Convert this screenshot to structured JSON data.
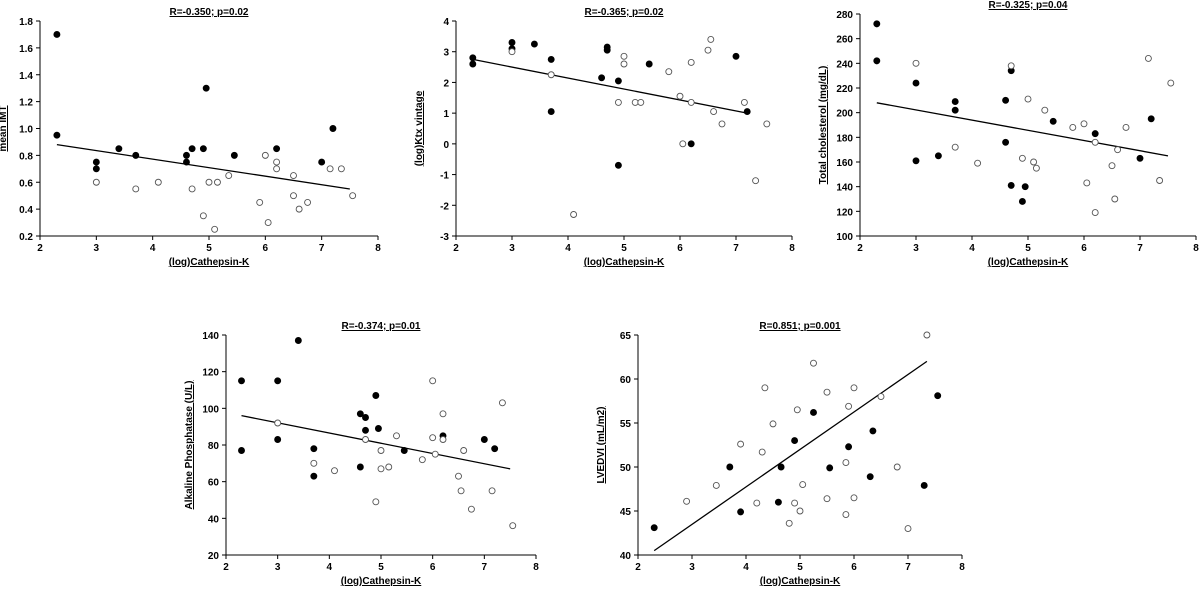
{
  "chart_data": [
    {
      "type": "scatter",
      "title": "R=-0.350; p=0.02",
      "xlabel": "(log)Cathepsin-K",
      "ylabel": "mean IMT",
      "xlim": [
        2,
        8
      ],
      "ylim": [
        0.2,
        1.8
      ],
      "xticks": [
        "2",
        "3",
        "4",
        "5",
        "6",
        "7",
        "8"
      ],
      "yticks": [
        "0.2",
        "0.4",
        "0.6",
        "0.8",
        "1.0",
        "1.2",
        "1.4",
        "1.6",
        "1.8"
      ],
      "fit_line": [
        [
          2.3,
          0.88
        ],
        [
          7.5,
          0.55
        ]
      ],
      "series": [
        {
          "marker": "filled",
          "x": [
            2.3,
            2.3,
            3.0,
            3.0,
            3.4,
            3.7,
            4.6,
            4.6,
            4.7,
            4.9,
            4.95,
            5.45,
            6.2,
            7.0,
            7.2
          ],
          "y": [
            1.7,
            0.95,
            0.75,
            0.7,
            0.85,
            0.8,
            0.8,
            0.75,
            0.85,
            0.85,
            1.3,
            0.8,
            0.85,
            0.75,
            1.0
          ]
        },
        {
          "marker": "open",
          "x": [
            3.0,
            3.7,
            4.1,
            4.7,
            4.9,
            5.0,
            5.1,
            5.15,
            5.35,
            5.9,
            6.0,
            6.05,
            6.2,
            6.2,
            6.5,
            6.5,
            6.6,
            6.75,
            7.15,
            7.35,
            7.55
          ],
          "y": [
            0.6,
            0.55,
            0.6,
            0.55,
            0.35,
            0.6,
            0.25,
            0.6,
            0.65,
            0.45,
            0.8,
            0.3,
            0.7,
            0.75,
            0.5,
            0.65,
            0.4,
            0.45,
            0.7,
            0.7,
            0.5
          ]
        }
      ]
    },
    {
      "type": "scatter",
      "title": "R=-0.365; p=0.02",
      "xlabel": "(log)Cathepsin-K",
      "ylabel": "(log)Ktx vintage",
      "xlim": [
        2,
        8
      ],
      "ylim": [
        -3,
        4
      ],
      "xticks": [
        "2",
        "3",
        "4",
        "5",
        "6",
        "7",
        "8"
      ],
      "yticks": [
        "-3",
        "-2",
        "-1",
        "0",
        "1",
        "2",
        "3",
        "4"
      ],
      "fit_line": [
        [
          2.3,
          2.75
        ],
        [
          7.2,
          1.0
        ]
      ],
      "series": [
        {
          "marker": "filled",
          "x": [
            2.3,
            2.3,
            3.0,
            3.0,
            3.4,
            3.7,
            3.7,
            4.6,
            4.7,
            4.7,
            4.9,
            4.9,
            5.45,
            6.2,
            7.0,
            7.2
          ],
          "y": [
            2.8,
            2.6,
            3.3,
            3.1,
            3.25,
            2.75,
            1.05,
            2.15,
            3.15,
            3.05,
            2.05,
            -0.7,
            2.6,
            0.0,
            2.85,
            1.05
          ]
        },
        {
          "marker": "open",
          "x": [
            3.0,
            3.7,
            4.1,
            4.9,
            5.0,
            5.0,
            5.2,
            5.3,
            5.8,
            6.0,
            6.05,
            6.2,
            6.2,
            6.5,
            6.55,
            6.6,
            6.75,
            7.15,
            7.35,
            7.55
          ],
          "y": [
            3.0,
            2.25,
            -2.3,
            1.35,
            2.85,
            2.6,
            1.35,
            1.35,
            2.35,
            1.55,
            0.0,
            1.35,
            2.65,
            3.05,
            3.4,
            1.05,
            0.65,
            1.35,
            -1.2,
            0.65
          ]
        }
      ]
    },
    {
      "type": "scatter",
      "title": "R=-0.325; p=0.04",
      "xlabel": "(log)Cathepsin-K",
      "ylabel": "Total cholesterol (mg/dL)",
      "xlim": [
        2,
        8
      ],
      "ylim": [
        100,
        280
      ],
      "xticks": [
        "2",
        "3",
        "4",
        "5",
        "6",
        "7",
        "8"
      ],
      "yticks": [
        "100",
        "120",
        "140",
        "160",
        "180",
        "200",
        "220",
        "240",
        "260",
        "280"
      ],
      "fit_line": [
        [
          2.3,
          208
        ],
        [
          7.5,
          165
        ]
      ],
      "series": [
        {
          "marker": "filled",
          "x": [
            2.3,
            2.3,
            3.0,
            3.0,
            3.4,
            3.7,
            3.7,
            4.6,
            4.6,
            4.7,
            4.7,
            4.9,
            4.95,
            5.45,
            6.2,
            7.0,
            7.2
          ],
          "y": [
            272,
            242,
            224,
            161,
            165,
            209,
            202,
            210,
            176,
            234,
            141,
            128,
            140,
            193,
            183,
            163,
            195
          ]
        },
        {
          "marker": "open",
          "x": [
            3.0,
            3.7,
            4.1,
            4.7,
            4.9,
            5.0,
            5.1,
            5.15,
            5.3,
            5.8,
            6.0,
            6.05,
            6.2,
            6.2,
            6.5,
            6.55,
            6.6,
            6.75,
            7.15,
            7.35,
            7.55
          ],
          "y": [
            240,
            172,
            159,
            238,
            163,
            211,
            160,
            155,
            202,
            188,
            191,
            143,
            119,
            176,
            157,
            130,
            170,
            188,
            244,
            145,
            224
          ]
        }
      ]
    },
    {
      "type": "scatter",
      "title": "R=-0.374; p=0.01",
      "xlabel": "(log)Cathepsin-K",
      "ylabel": "Alkaline Phosphatase (U/L)",
      "xlim": [
        2,
        8
      ],
      "ylim": [
        20,
        140
      ],
      "xticks": [
        "2",
        "3",
        "4",
        "5",
        "6",
        "7",
        "8"
      ],
      "yticks": [
        "20",
        "40",
        "60",
        "80",
        "100",
        "120",
        "140"
      ],
      "fit_line": [
        [
          2.3,
          96
        ],
        [
          7.5,
          67
        ]
      ],
      "series": [
        {
          "marker": "filled",
          "x": [
            2.3,
            2.3,
            3.0,
            3.0,
            3.4,
            3.7,
            3.7,
            4.6,
            4.6,
            4.7,
            4.7,
            4.9,
            4.95,
            5.45,
            6.2,
            7.0,
            7.2
          ],
          "y": [
            115,
            77,
            115,
            83,
            137,
            78,
            63,
            68,
            97,
            95,
            88,
            107,
            89,
            77,
            85,
            83,
            78
          ]
        },
        {
          "marker": "open",
          "x": [
            3.0,
            3.7,
            4.1,
            4.7,
            4.9,
            5.0,
            5.0,
            5.15,
            5.3,
            5.8,
            6.0,
            6.0,
            6.05,
            6.2,
            6.2,
            6.5,
            6.55,
            6.6,
            6.75,
            7.15,
            7.35,
            7.55
          ],
          "y": [
            92,
            70,
            66,
            83,
            49,
            67,
            77,
            68,
            85,
            72,
            115,
            84,
            75,
            83,
            97,
            63,
            55,
            77,
            45,
            55,
            103,
            36
          ]
        }
      ]
    },
    {
      "type": "scatter",
      "title": "R=0.851; p=0.001",
      "xlabel": "(log)Cathepsin-K",
      "ylabel": "LVEDVI (mL/m2)",
      "xlim": [
        2,
        8
      ],
      "ylim": [
        40,
        65
      ],
      "xticks": [
        "2",
        "3",
        "4",
        "5",
        "6",
        "7",
        "8"
      ],
      "yticks": [
        "40",
        "45",
        "50",
        "55",
        "60",
        "65"
      ],
      "fit_line": [
        [
          2.3,
          40.5
        ],
        [
          7.35,
          62
        ]
      ],
      "series": [
        {
          "marker": "filled",
          "x": [
            2.3,
            3.7,
            3.9,
            4.6,
            4.65,
            4.9,
            5.25,
            5.55,
            5.9,
            6.3,
            6.35,
            7.3,
            7.55
          ],
          "y": [
            43.1,
            50.0,
            44.9,
            46.0,
            50.0,
            53.0,
            56.2,
            49.9,
            52.3,
            48.9,
            54.1,
            47.9,
            58.1
          ]
        },
        {
          "marker": "open",
          "x": [
            2.9,
            3.45,
            3.9,
            4.2,
            4.3,
            4.35,
            4.5,
            4.8,
            4.9,
            4.95,
            5.0,
            5.05,
            5.25,
            5.5,
            5.5,
            5.85,
            5.85,
            5.9,
            6.0,
            6.0,
            6.5,
            6.8,
            7.0,
            7.35
          ],
          "y": [
            46.1,
            47.9,
            52.6,
            45.9,
            51.7,
            59.0,
            54.9,
            43.6,
            45.9,
            56.5,
            45.0,
            48.0,
            61.8,
            46.4,
            58.5,
            44.6,
            50.5,
            56.9,
            46.5,
            59.0,
            58.0,
            50.0,
            43.0,
            65.0
          ]
        }
      ]
    }
  ]
}
